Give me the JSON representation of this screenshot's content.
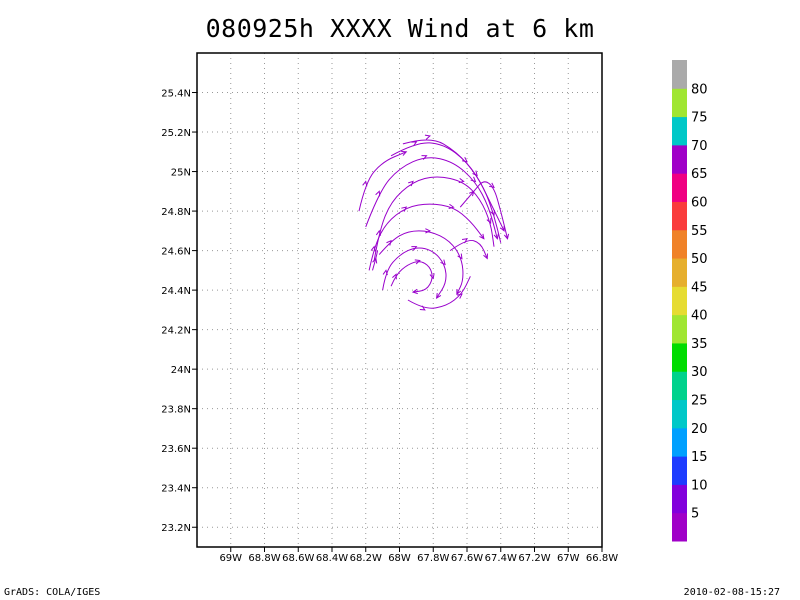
{
  "title": "080925h XXXX Wind at 6 km",
  "footer": {
    "left": "GrADS: COLA/IGES",
    "right": "2010-02-08-15:27"
  },
  "chart_data": {
    "type": "streamline",
    "title": "080925h XXXX Wind at 6 km",
    "xlim": [
      -69.2,
      -66.8
    ],
    "ylim": [
      23.1,
      25.6
    ],
    "x_ticks": [
      {
        "value": -69.0,
        "label": "69W"
      },
      {
        "value": -68.8,
        "label": "68.8W"
      },
      {
        "value": -68.6,
        "label": "68.6W"
      },
      {
        "value": -68.4,
        "label": "68.4W"
      },
      {
        "value": -68.2,
        "label": "68.2W"
      },
      {
        "value": -68.0,
        "label": "68W"
      },
      {
        "value": -67.8,
        "label": "67.8W"
      },
      {
        "value": -67.6,
        "label": "67.6W"
      },
      {
        "value": -67.4,
        "label": "67.4W"
      },
      {
        "value": -67.2,
        "label": "67.2W"
      },
      {
        "value": -67.0,
        "label": "67W"
      },
      {
        "value": -66.8,
        "label": "66.8W"
      }
    ],
    "y_ticks": [
      {
        "value": 25.4,
        "label": "25.4N"
      },
      {
        "value": 25.2,
        "label": "25.2N"
      },
      {
        "value": 25.0,
        "label": "25N"
      },
      {
        "value": 24.8,
        "label": "24.8N"
      },
      {
        "value": 24.6,
        "label": "24.6N"
      },
      {
        "value": 24.4,
        "label": "24.4N"
      },
      {
        "value": 24.2,
        "label": "24.2N"
      },
      {
        "value": 24.0,
        "label": "24N"
      },
      {
        "value": 23.8,
        "label": "23.8N"
      },
      {
        "value": 23.6,
        "label": "23.6N"
      },
      {
        "value": 23.4,
        "label": "23.4N"
      },
      {
        "value": 23.2,
        "label": "23.2N"
      }
    ],
    "grid": true,
    "streamline_color": "#9900cc",
    "circulation_center": {
      "lon": -67.85,
      "lat": 24.55
    },
    "streamlines": [
      [
        [
          -68.05,
          24.42
        ],
        [
          -68.02,
          24.48
        ],
        [
          -67.95,
          24.53
        ],
        [
          -67.88,
          24.55
        ],
        [
          -67.82,
          24.52
        ],
        [
          -67.8,
          24.46
        ],
        [
          -67.84,
          24.4
        ],
        [
          -67.92,
          24.39
        ]
      ],
      [
        [
          -68.1,
          24.4
        ],
        [
          -68.08,
          24.5
        ],
        [
          -68.0,
          24.58
        ],
        [
          -67.9,
          24.62
        ],
        [
          -67.8,
          24.6
        ],
        [
          -67.73,
          24.53
        ],
        [
          -67.72,
          24.44
        ],
        [
          -67.78,
          24.36
        ]
      ],
      [
        [
          -68.12,
          24.58
        ],
        [
          -68.05,
          24.65
        ],
        [
          -67.95,
          24.7
        ],
        [
          -67.82,
          24.7
        ],
        [
          -67.7,
          24.65
        ],
        [
          -67.63,
          24.56
        ],
        [
          -67.62,
          24.45
        ],
        [
          -67.66,
          24.38
        ]
      ],
      [
        [
          -67.95,
          24.35
        ],
        [
          -67.85,
          24.3
        ],
        [
          -67.72,
          24.32
        ],
        [
          -67.63,
          24.38
        ],
        [
          -67.58,
          24.47
        ]
      ],
      [
        [
          -68.18,
          24.5
        ],
        [
          -68.15,
          24.62
        ],
        [
          -68.08,
          24.74
        ],
        [
          -67.96,
          24.82
        ],
        [
          -67.82,
          24.84
        ],
        [
          -67.68,
          24.82
        ],
        [
          -67.58,
          24.75
        ],
        [
          -67.5,
          24.66
        ]
      ],
      [
        [
          -68.15,
          24.55
        ],
        [
          -68.12,
          24.7
        ],
        [
          -68.05,
          24.85
        ],
        [
          -67.92,
          24.95
        ],
        [
          -67.78,
          24.98
        ],
        [
          -67.62,
          24.95
        ],
        [
          -67.52,
          24.86
        ],
        [
          -67.46,
          24.74
        ],
        [
          -67.44,
          24.62
        ]
      ],
      [
        [
          -68.2,
          24.72
        ],
        [
          -68.12,
          24.9
        ],
        [
          -68.0,
          25.02
        ],
        [
          -67.84,
          25.08
        ],
        [
          -67.68,
          25.05
        ],
        [
          -67.55,
          24.95
        ],
        [
          -67.47,
          24.82
        ],
        [
          -67.42,
          24.66
        ]
      ],
      [
        [
          -68.05,
          25.08
        ],
        [
          -67.9,
          25.15
        ],
        [
          -67.74,
          25.14
        ],
        [
          -67.6,
          25.05
        ],
        [
          -67.5,
          24.92
        ],
        [
          -67.44,
          24.78
        ],
        [
          -67.4,
          24.64
        ]
      ],
      [
        [
          -67.98,
          25.14
        ],
        [
          -67.82,
          25.18
        ],
        [
          -67.66,
          25.1
        ],
        [
          -67.54,
          24.98
        ],
        [
          -67.46,
          24.84
        ],
        [
          -67.38,
          24.7
        ]
      ],
      [
        [
          -68.24,
          24.8
        ],
        [
          -68.2,
          24.95
        ],
        [
          -68.1,
          25.05
        ],
        [
          -67.96,
          25.1
        ]
      ],
      [
        [
          -67.64,
          24.82
        ],
        [
          -67.56,
          24.9
        ],
        [
          -67.5,
          24.96
        ],
        [
          -67.44,
          24.92
        ],
        [
          -67.4,
          24.8
        ],
        [
          -67.36,
          24.66
        ]
      ],
      [
        [
          -67.7,
          24.6
        ],
        [
          -67.6,
          24.66
        ],
        [
          -67.52,
          24.64
        ],
        [
          -67.48,
          24.56
        ]
      ],
      [
        [
          -68.16,
          24.5
        ],
        [
          -68.14,
          24.56
        ],
        [
          -68.13,
          24.6
        ]
      ]
    ],
    "colorbar": {
      "segments": [
        {
          "color": "#a000c8"
        },
        {
          "color": "#8200dc"
        },
        {
          "color": "#1e3cff"
        },
        {
          "color": "#00a0ff"
        },
        {
          "color": "#00c8c8"
        },
        {
          "color": "#00d28c"
        },
        {
          "color": "#00dc00"
        },
        {
          "color": "#a0e632"
        },
        {
          "color": "#e6dc32"
        },
        {
          "color": "#e6af2d"
        },
        {
          "color": "#f08228"
        },
        {
          "color": "#fa3c3c"
        },
        {
          "color": "#f00082"
        },
        {
          "color": "#a000c8"
        },
        {
          "color": "#00c8c8"
        },
        {
          "color": "#a0e632"
        },
        {
          "color": "#aaaaaa"
        }
      ],
      "labels": [
        "5",
        "10",
        "15",
        "20",
        "25",
        "30",
        "35",
        "40",
        "45",
        "50",
        "55",
        "60",
        "65",
        "70",
        "75",
        "80"
      ]
    }
  }
}
